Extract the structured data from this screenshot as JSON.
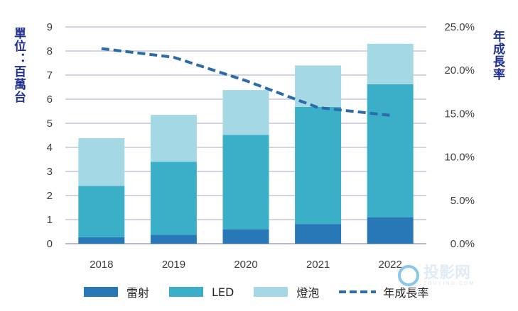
{
  "chart_data": {
    "type": "bar",
    "stacked": true,
    "categories": [
      "2018",
      "2019",
      "2020",
      "2021",
      "2022"
    ],
    "series": [
      {
        "name": "雷射",
        "values": [
          0.27,
          0.37,
          0.6,
          0.82,
          1.1
        ],
        "color": "#2878b8"
      },
      {
        "name": "LED",
        "values": [
          2.13,
          3.03,
          3.92,
          4.86,
          5.52
        ],
        "color": "#3bafc8"
      },
      {
        "name": "燈泡",
        "values": [
          1.98,
          1.95,
          1.86,
          1.72,
          1.68
        ],
        "color": "#a3d8e4"
      }
    ],
    "line_series": {
      "name": "年成長率",
      "values": [
        22.5,
        21.5,
        18.8,
        15.7,
        14.8
      ],
      "color": "#2c6aa8",
      "style": "dashed"
    },
    "ylabel": "單位：百萬台",
    "y2label": "年成長率",
    "ylim": [
      0,
      9
    ],
    "y_ticks": [
      "0",
      "1",
      "2",
      "3",
      "4",
      "5",
      "6",
      "7",
      "8",
      "9"
    ],
    "y2lim": [
      0,
      25
    ],
    "y2_ticks": [
      "0.0%",
      "5.0%",
      "10.0%",
      "15.0%",
      "20.0%",
      "25.0%"
    ],
    "grid": true,
    "legend_position": "bottom"
  },
  "watermark": {
    "main": "投影网",
    "sub": "TOUYING.COM"
  }
}
